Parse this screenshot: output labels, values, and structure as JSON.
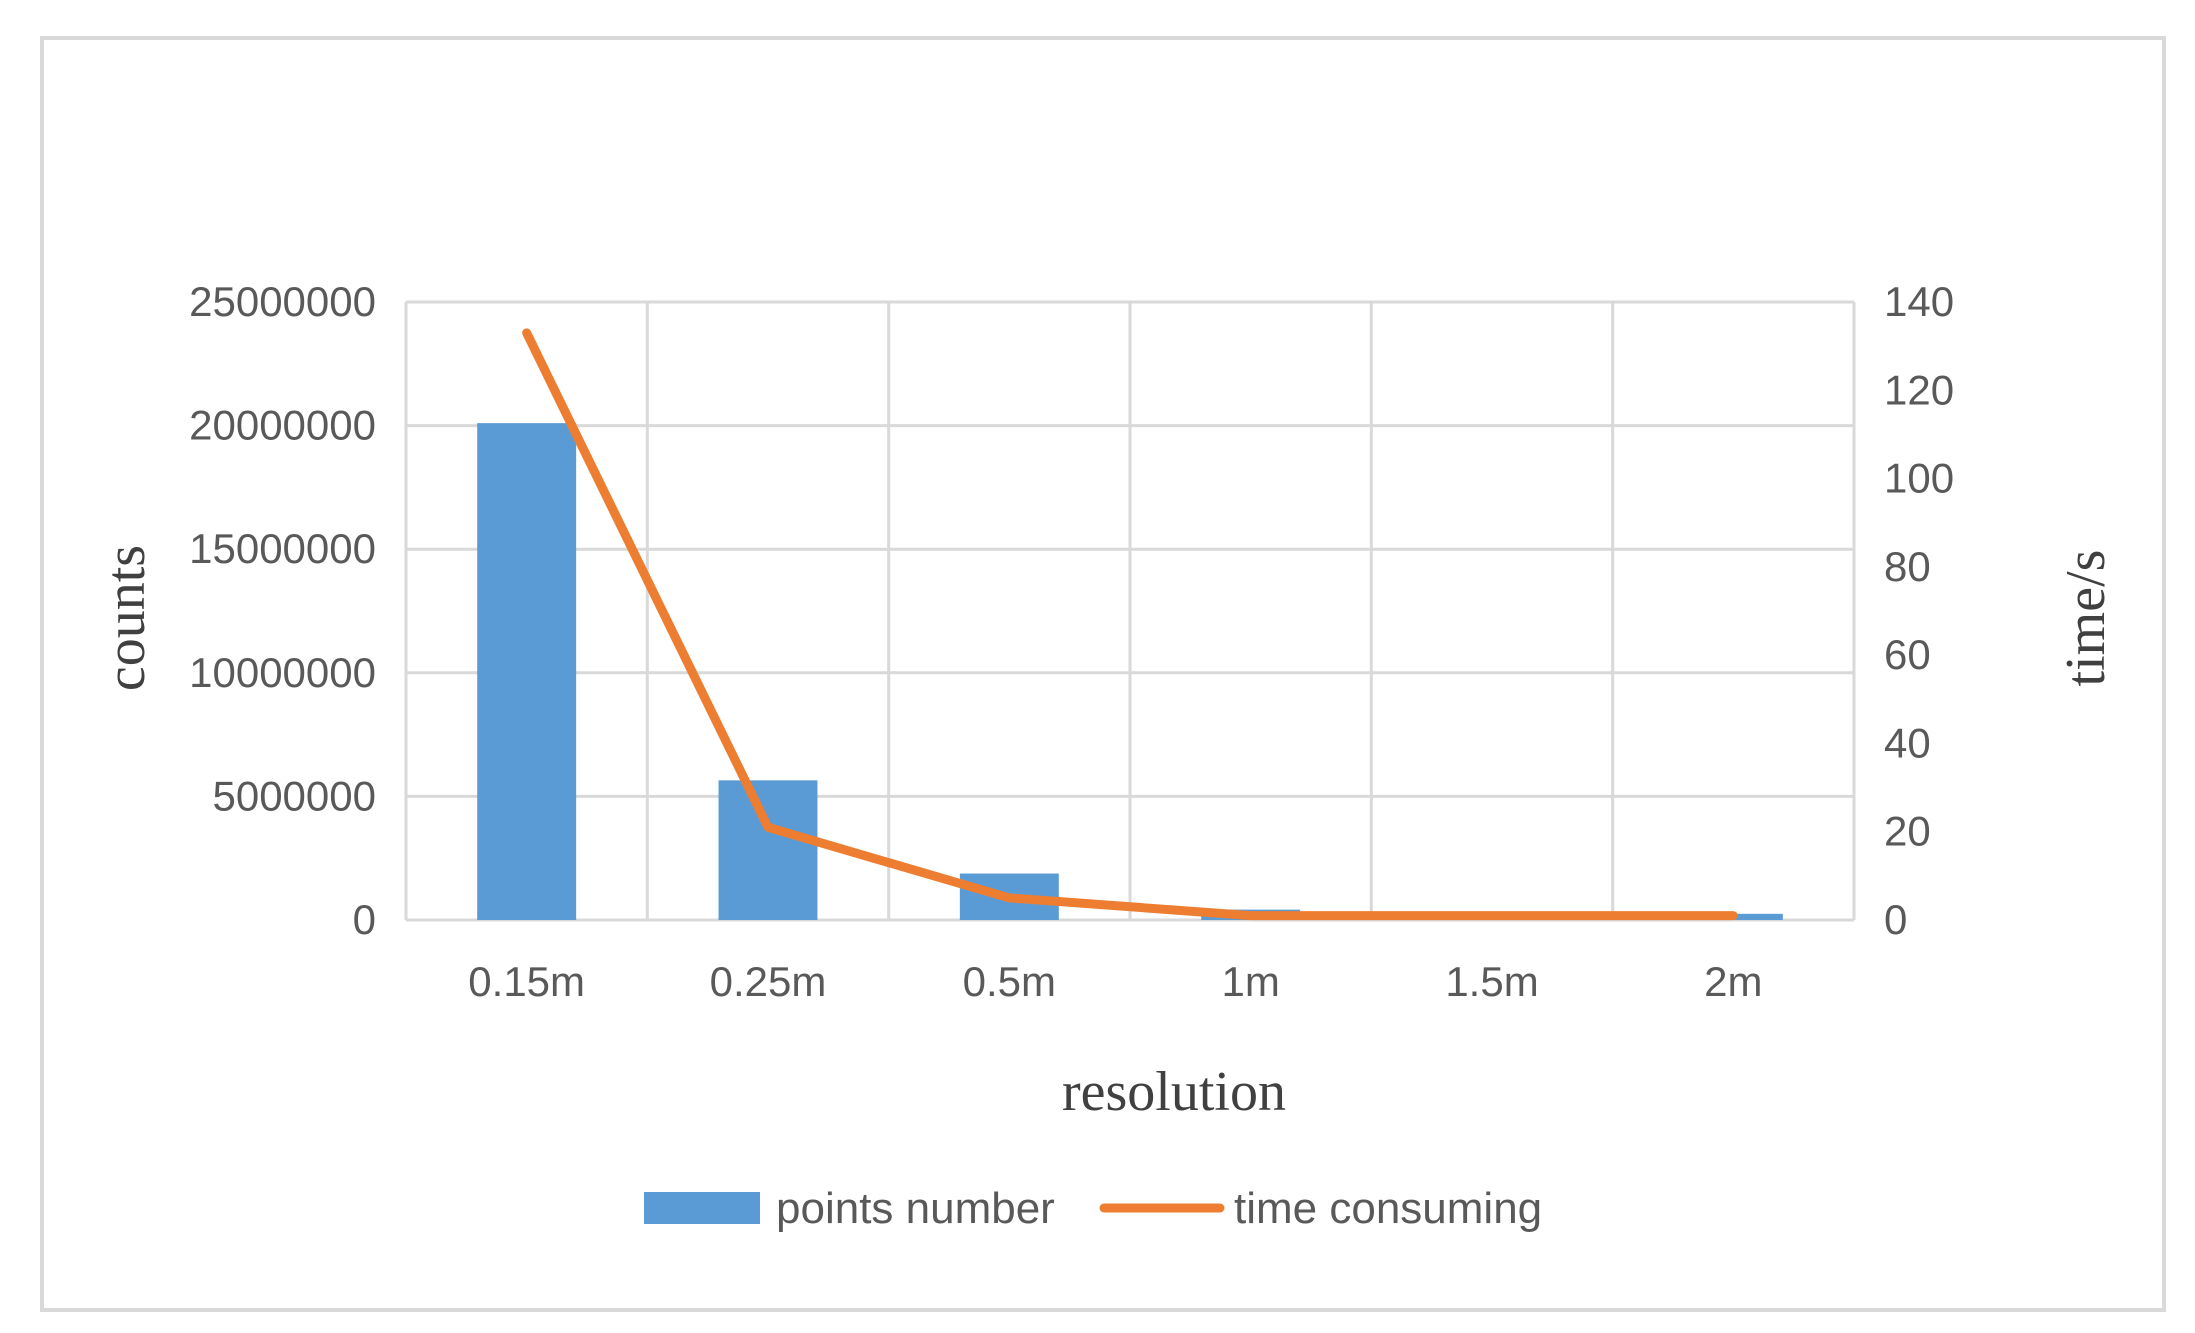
{
  "chart_data": {
    "type": "bar",
    "categories": [
      "0.15m",
      "0.25m",
      "0.5m",
      "1m",
      "1.5m",
      "2m"
    ],
    "series": [
      {
        "name": "points number",
        "kind": "bar",
        "axis": "left",
        "color": "#5b9bd5",
        "values": [
          20100000,
          5650000,
          1880000,
          420000,
          150000,
          250000
        ]
      },
      {
        "name": "time consuming",
        "kind": "line",
        "axis": "right",
        "color": "#ed7d31",
        "values": [
          133,
          21,
          5,
          1,
          1,
          1
        ]
      }
    ],
    "xlabel": "resolution",
    "ylabel": "counts",
    "y2label": "time/s",
    "ylim": [
      0,
      25000000
    ],
    "y2lim": [
      0,
      140
    ],
    "yticks": [
      "0",
      "5000000",
      "10000000",
      "15000000",
      "20000000",
      "25000000"
    ],
    "y2ticks": [
      "0",
      "20",
      "40",
      "60",
      "80",
      "100",
      "120",
      "140"
    ],
    "grid": true,
    "legend_position": "bottom"
  }
}
